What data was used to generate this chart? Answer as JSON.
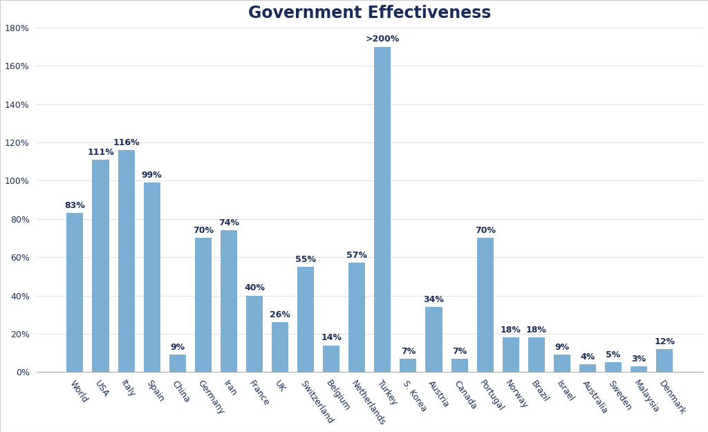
{
  "categories": [
    "World",
    "USA",
    "Italy",
    "Spain",
    "China",
    "Germany",
    "Iran",
    "France",
    "UK",
    "Switzerland",
    "Belgium",
    "Netherlands",
    "Turkey",
    "S. Korea",
    "Austria",
    "Canada",
    "Portugal",
    "Norway",
    "Brazil",
    "Israel",
    "Australia",
    "Sweden",
    "Malaysia",
    "Denmark"
  ],
  "values": [
    83,
    111,
    116,
    99,
    9,
    70,
    74,
    40,
    26,
    55,
    14,
    57,
    170,
    7,
    34,
    7,
    70,
    18,
    18,
    9,
    4,
    5,
    3,
    12
  ],
  "labels": [
    "83%",
    "111%",
    "116%",
    "99%",
    "9%",
    "70%",
    "74%",
    "40%",
    "26%",
    "55%",
    "14%",
    "57%",
    ">200%",
    "7%",
    "34%",
    "7%",
    "70%",
    "18%",
    "18%",
    "9%",
    "4%",
    "5%",
    "3%",
    "12%"
  ],
  "bar_color": "#7BAFD4",
  "title": "Government Effectiveness",
  "title_fontsize": 17,
  "title_fontweight": "bold",
  "title_color": "#1a2d5a",
  "label_color": "#1a2d5a",
  "tick_color": "#1a2d5a",
  "ylim": [
    0,
    180
  ],
  "yticks": [
    0,
    20,
    40,
    60,
    80,
    100,
    120,
    140,
    160,
    180
  ],
  "ytick_labels": [
    "0%",
    "20%",
    "40%",
    "60%",
    "80%",
    "100%",
    "120%",
    "140%",
    "160%",
    "180%"
  ],
  "background_color": "#ffffff",
  "plot_bg_color": "#ffffff",
  "grid_color": "#e0e0e0",
  "label_fontsize": 9,
  "tick_fontsize": 9,
  "xtick_rotation": -55
}
